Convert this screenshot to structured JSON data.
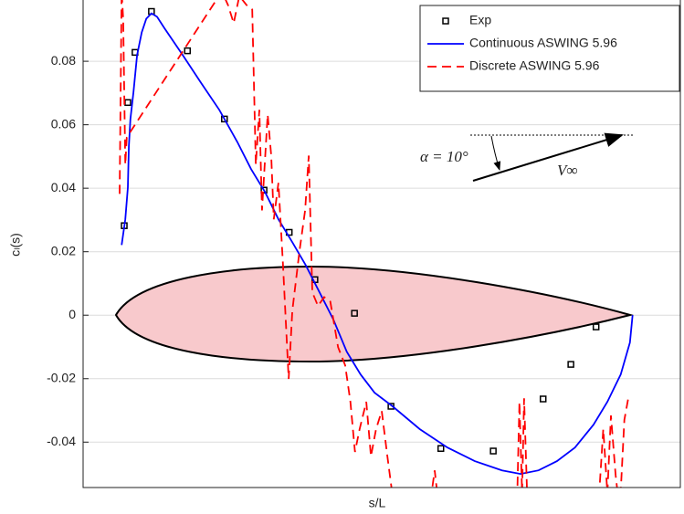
{
  "chart_data": {
    "type": "line",
    "xlabel": "s/L",
    "ylabel": "cₗ(s)",
    "xlim": [
      -0.064,
      1.098
    ],
    "ylim": [
      -0.0543,
      0.0993
    ],
    "yticks": [
      -0.04,
      -0.02,
      0,
      0.02,
      0.04,
      0.06,
      0.08
    ],
    "grid": true,
    "legend": "upper right",
    "annotations": [
      "α = 10°",
      "V∞"
    ],
    "series": [
      {
        "name": "Exp",
        "color": "#000000",
        "style": "marker",
        "x": [
          0.016,
          0.023,
          0.037,
          0.069,
          0.139,
          0.211,
          0.288,
          0.337,
          0.387,
          0.464,
          0.535,
          0.632,
          0.734,
          0.831,
          0.885,
          0.934
        ],
        "values": [
          0.0282,
          0.067,
          0.0828,
          0.0957,
          0.0833,
          0.0618,
          0.0394,
          0.0261,
          0.0112,
          0.0006,
          -0.0287,
          -0.042,
          -0.0428,
          -0.0264,
          -0.0155,
          -0.0037
        ]
      },
      {
        "name": "Continuous ASWING 5.96",
        "color": "#0000ff",
        "style": "solid",
        "x": [
          0.011,
          0.018,
          0.023,
          0.025,
          0.028,
          0.034,
          0.041,
          0.05,
          0.059,
          0.069,
          0.08,
          0.094,
          0.13,
          0.165,
          0.201,
          0.236,
          0.263,
          0.29,
          0.316,
          0.343,
          0.369,
          0.396,
          0.423,
          0.449,
          0.476,
          0.503,
          0.538,
          0.591,
          0.645,
          0.698,
          0.751,
          0.787,
          0.822,
          0.858,
          0.893,
          0.929,
          0.956,
          0.982,
          1.0,
          1.005
        ],
        "values": [
          0.0221,
          0.0302,
          0.0402,
          0.0532,
          0.0618,
          0.0704,
          0.0819,
          0.0891,
          0.0934,
          0.0951,
          0.094,
          0.0905,
          0.0819,
          0.0733,
          0.0647,
          0.0546,
          0.046,
          0.0388,
          0.0302,
          0.023,
          0.0158,
          0.0072,
          -0.0014,
          -0.0115,
          -0.0187,
          -0.0244,
          -0.0287,
          -0.0359,
          -0.0417,
          -0.046,
          -0.0489,
          -0.05,
          -0.0489,
          -0.046,
          -0.0417,
          -0.0345,
          -0.0273,
          -0.0187,
          -0.0086,
          0
        ]
      },
      {
        "name": "Discrete ASWING 5.96",
        "color": "#ff0000",
        "style": "dashed",
        "x": [
          0.007,
          0.011,
          0.014,
          0.018,
          0.021,
          0.206,
          0.218,
          0.229,
          0.24,
          0.254,
          0.265,
          0.272,
          0.279,
          0.284,
          0.295,
          0.302,
          0.307,
          0.316,
          0.325,
          0.336,
          0.343,
          0.357,
          0.368,
          0.375,
          0.382,
          0.393,
          0.405,
          0.417,
          0.432,
          0.446,
          0.456,
          0.465,
          0.474,
          0.487,
          0.496,
          0.506,
          0.517,
          0.528,
          0.542,
          0.609,
          0.62,
          0.629,
          0.78,
          0.785,
          0.79,
          0.794,
          0.801,
          0.938,
          0.948,
          0.956,
          0.963,
          0.972,
          0.98,
          0.989,
          0.998
        ],
        "values": [
          0.0382,
          0.102,
          0.0934,
          0.0474,
          0.056,
          0.102,
          0.0977,
          0.092,
          0.1006,
          0.0977,
          0.0963,
          0.0474,
          0.0647,
          0.033,
          0.0632,
          0.0503,
          0.0302,
          0.0417,
          0.0158,
          -0.0201,
          0.0014,
          0.0201,
          0.033,
          0.0503,
          0.0072,
          0.0029,
          0.0057,
          0.0043,
          -0.0101,
          -0.0158,
          -0.0273,
          -0.0431,
          -0.0359,
          -0.0273,
          -0.0445,
          -0.0359,
          -0.0302,
          -0.0445,
          -0.0618,
          -0.0618,
          -0.0489,
          -0.0618,
          -0.0618,
          -0.0273,
          -0.056,
          -0.0262,
          -0.0618,
          -0.0618,
          -0.0359,
          -0.056,
          -0.0316,
          -0.0503,
          -0.0618,
          -0.033,
          -0.025
        ]
      }
    ]
  }
}
